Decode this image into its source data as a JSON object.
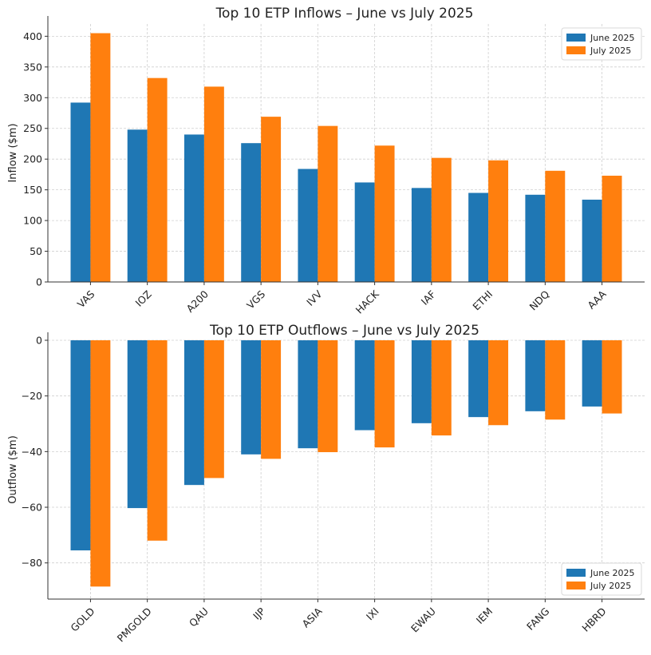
{
  "colors": {
    "june": "#1f77b4",
    "july": "#ff7f0e"
  },
  "chart_data": [
    {
      "type": "bar",
      "title": "Top 10 ETP Inflows – June vs July 2025",
      "xlabel": "",
      "ylabel": "Inflow ($m)",
      "ylim": [
        0,
        420
      ],
      "yticks": [
        0,
        50,
        100,
        150,
        200,
        250,
        300,
        350,
        400
      ],
      "grid": true,
      "legend_position": "top-right",
      "categories": [
        "VAS",
        "IOZ",
        "A200",
        "VGS",
        "IVV",
        "HACK",
        "IAF",
        "ETHI",
        "NDQ",
        "AAA"
      ],
      "series": [
        {
          "name": "June 2025",
          "values": [
            292,
            248,
            240,
            226,
            184,
            162,
            153,
            145,
            142,
            134
          ]
        },
        {
          "name": "July 2025",
          "values": [
            405,
            332,
            318,
            269,
            254,
            222,
            202,
            198,
            181,
            173
          ]
        }
      ]
    },
    {
      "type": "bar",
      "title": "Top 10 ETP Outflows – June vs July 2025",
      "xlabel": "",
      "ylabel": "Outflow ($m)",
      "ylim": [
        -93,
        0
      ],
      "yticks": [
        -80,
        -60,
        -40,
        -20,
        0
      ],
      "grid": true,
      "legend_position": "bottom-right",
      "categories": [
        "GOLD",
        "PMGOLD",
        "QAU",
        "IJP",
        "ASIA",
        "IXI",
        "EWAU",
        "IEM",
        "FANG",
        "HBRD"
      ],
      "series": [
        {
          "name": "June 2025",
          "values": [
            -75.5,
            -60.3,
            -52,
            -41,
            -38.8,
            -32.3,
            -29.8,
            -27.6,
            -25.5,
            -23.8
          ]
        },
        {
          "name": "July 2025",
          "values": [
            -88.5,
            -72,
            -49.5,
            -42.6,
            -40.2,
            -38.5,
            -34.2,
            -30.5,
            -28.5,
            -26.3
          ]
        }
      ]
    }
  ]
}
